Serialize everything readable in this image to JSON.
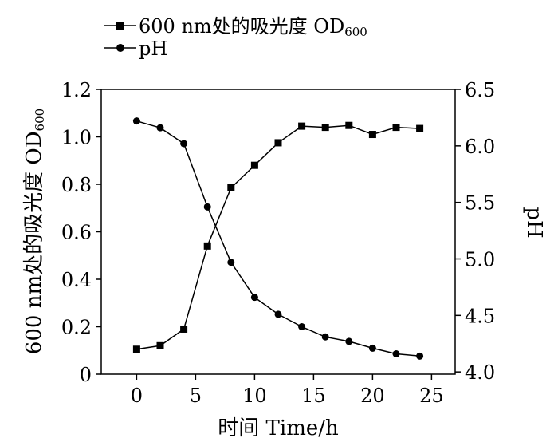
{
  "chart_data": {
    "type": "line",
    "x": [
      0,
      2,
      4,
      6,
      8,
      10,
      12,
      14,
      16,
      18,
      20,
      22,
      24
    ],
    "xlim": [
      -3,
      27
    ],
    "xticks": [
      "0",
      "5",
      "10",
      "15",
      "20",
      "25"
    ],
    "xlabel": "时间  Time/h",
    "ylabel_left": "600 nm处的吸光度  OD",
    "ylabel_left_sub": "600",
    "ylim_left": [
      0,
      1.2
    ],
    "yticks_left": [
      "0",
      "0.2",
      "0.4",
      "0.6",
      "0.8",
      "1.0",
      "1.2"
    ],
    "ylabel_right": "pH",
    "ylim_right": [
      3.98,
      6.5
    ],
    "yticks_right": [
      "4.0",
      "4.5",
      "5.0",
      "5.5",
      "6.0",
      "6.5"
    ],
    "grid": false,
    "legend_position": "top-left",
    "series": [
      {
        "name": "600 nm处的吸光度  OD",
        "name_sub": "600",
        "axis": "left",
        "marker": "square",
        "values": [
          0.105,
          0.12,
          0.19,
          0.54,
          0.785,
          0.88,
          0.975,
          1.045,
          1.04,
          1.048,
          1.01,
          1.04,
          1.035
        ]
      },
      {
        "name": "pH",
        "axis": "right",
        "marker": "circle",
        "values": [
          6.22,
          6.16,
          6.02,
          5.46,
          4.97,
          4.66,
          4.51,
          4.4,
          4.31,
          4.27,
          4.21,
          4.16,
          4.14
        ]
      }
    ]
  }
}
